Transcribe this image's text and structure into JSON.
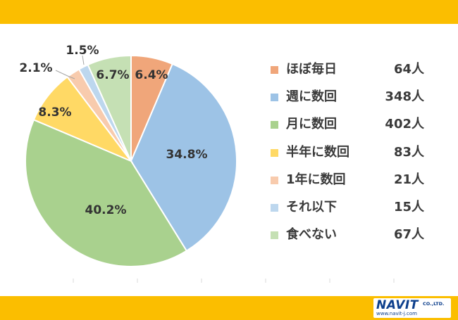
{
  "chart_data": {
    "type": "pie",
    "start_angle_deg": 0,
    "direction": "clockwise",
    "slices": [
      {
        "label": "ほぼ毎日",
        "value": 64,
        "percent_label": "6.4%",
        "count_label": "64人",
        "color": "#f0a67a"
      },
      {
        "label": "週に数回",
        "value": 348,
        "percent_label": "34.8%",
        "count_label": "348人",
        "color": "#9dc3e6"
      },
      {
        "label": "月に数回",
        "value": 402,
        "percent_label": "40.2%",
        "count_label": "402人",
        "color": "#a9d18e"
      },
      {
        "label": "半年に数回",
        "value": 83,
        "percent_label": "8.3%",
        "count_label": "83人",
        "color": "#ffd965"
      },
      {
        "label": "1年に数回",
        "value": 21,
        "percent_label": "2.1%",
        "count_label": "21人",
        "color": "#f8cbad"
      },
      {
        "label": "それ以下",
        "value": 15,
        "percent_label": "1.5%",
        "count_label": "15人",
        "color": "#bdd7ee"
      },
      {
        "label": "食べない",
        "value": 67,
        "percent_label": "6.7%",
        "count_label": "67人",
        "color": "#c5e0b4"
      }
    ],
    "legend_position": "right"
  },
  "brand": {
    "name": "NAVIT",
    "suffix": "CO.,LTD.",
    "url": "www.navit-j.com"
  }
}
